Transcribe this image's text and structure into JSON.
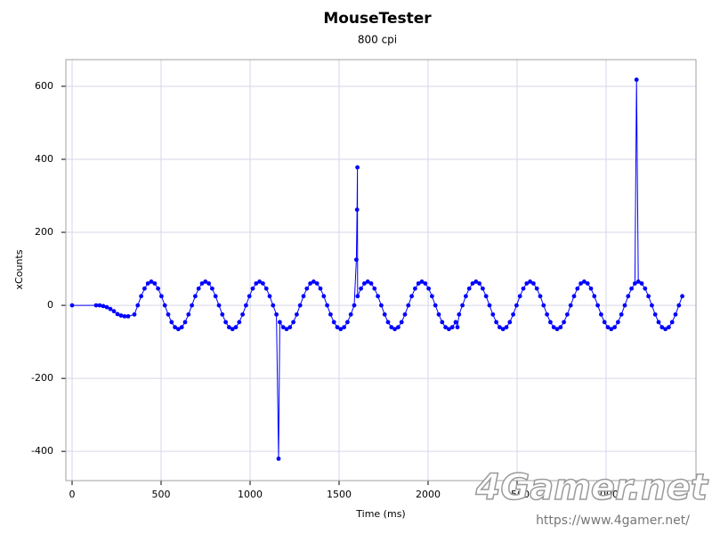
{
  "chart_data": {
    "type": "scatter",
    "title": "MouseTester",
    "subtitle": "800 cpi",
    "x_label": "Time (ms)",
    "y_label": "xCounts",
    "color": "#0000ff",
    "line": true,
    "grid": true,
    "xlim": [
      -35,
      3505
    ],
    "ylim": [
      -480,
      673
    ],
    "xticks": [
      0,
      500,
      1000,
      1500,
      2000,
      2500,
      3000
    ],
    "yticks": [
      -400,
      -200,
      0,
      200,
      400,
      600
    ],
    "x": [
      0,
      135,
      155,
      175,
      195,
      215,
      235,
      255,
      275,
      295,
      315,
      350,
      369,
      388,
      407,
      426,
      445,
      464,
      483,
      502,
      521,
      540,
      559,
      578,
      597,
      616,
      635,
      654,
      673,
      692,
      711,
      730,
      749,
      768,
      787,
      806,
      825,
      844,
      863,
      882,
      901,
      920,
      939,
      958,
      977,
      996,
      1015,
      1034,
      1053,
      1072,
      1091,
      1110,
      1129,
      1148,
      1160,
      1167,
      1186,
      1205,
      1224,
      1243,
      1262,
      1281,
      1300,
      1319,
      1338,
      1357,
      1376,
      1395,
      1414,
      1433,
      1452,
      1471,
      1490,
      1509,
      1528,
      1547,
      1566,
      1585,
      1597,
      1601,
      1603,
      1604,
      1623,
      1642,
      1661,
      1680,
      1699,
      1718,
      1737,
      1756,
      1775,
      1794,
      1813,
      1832,
      1851,
      1870,
      1889,
      1908,
      1927,
      1946,
      1965,
      1984,
      2003,
      2022,
      2041,
      2060,
      2079,
      2098,
      2117,
      2136,
      2155,
      2165,
      2174,
      2193,
      2212,
      2231,
      2250,
      2269,
      2288,
      2307,
      2326,
      2345,
      2364,
      2383,
      2402,
      2421,
      2440,
      2459,
      2478,
      2497,
      2516,
      2535,
      2554,
      2573,
      2592,
      2611,
      2630,
      2649,
      2668,
      2687,
      2706,
      2725,
      2744,
      2763,
      2782,
      2801,
      2820,
      2839,
      2858,
      2877,
      2896,
      2915,
      2934,
      2953,
      2972,
      2991,
      3010,
      3029,
      3048,
      3067,
      3086,
      3105,
      3124,
      3143,
      3162,
      3171,
      3181,
      3200,
      3219,
      3238,
      3257,
      3276,
      3295,
      3314,
      3333,
      3352,
      3371,
      3390,
      3409,
      3428
    ],
    "values": [
      0,
      0,
      0,
      -2,
      -5,
      -10,
      -16,
      -24,
      -28,
      -30,
      -30,
      -25,
      0,
      25,
      46,
      60,
      65,
      60,
      46,
      25,
      0,
      -25,
      -46,
      -60,
      -65,
      -60,
      -46,
      -25,
      0,
      25,
      46,
      60,
      65,
      60,
      46,
      25,
      0,
      -25,
      -46,
      -60,
      -65,
      -60,
      -46,
      -25,
      0,
      25,
      46,
      60,
      65,
      60,
      46,
      25,
      0,
      -25,
      -420,
      -46,
      -60,
      -65,
      -60,
      -46,
      -25,
      0,
      25,
      46,
      60,
      65,
      60,
      46,
      25,
      0,
      -25,
      -46,
      -60,
      -65,
      -60,
      -46,
      -25,
      0,
      125,
      262,
      378,
      25,
      46,
      60,
      65,
      60,
      46,
      25,
      0,
      -25,
      -46,
      -60,
      -65,
      -60,
      -46,
      -25,
      0,
      25,
      46,
      60,
      65,
      60,
      46,
      25,
      0,
      -25,
      -46,
      -60,
      -65,
      -60,
      -46,
      -60,
      -25,
      0,
      25,
      46,
      60,
      65,
      60,
      46,
      25,
      0,
      -25,
      -46,
      -60,
      -65,
      -60,
      -46,
      -25,
      0,
      25,
      46,
      60,
      65,
      60,
      46,
      25,
      0,
      -25,
      -46,
      -60,
      -65,
      -60,
      -46,
      -25,
      0,
      25,
      46,
      60,
      65,
      60,
      46,
      25,
      0,
      -25,
      -46,
      -60,
      -65,
      -60,
      -46,
      -25,
      0,
      25,
      46,
      60,
      618,
      65,
      60,
      46,
      25,
      0,
      -25,
      -46,
      -60,
      -65,
      -60,
      -46,
      -25,
      0,
      25
    ]
  },
  "watermark": {
    "logo": "4Gamer.net",
    "url": "https://www.4gamer.net/"
  }
}
